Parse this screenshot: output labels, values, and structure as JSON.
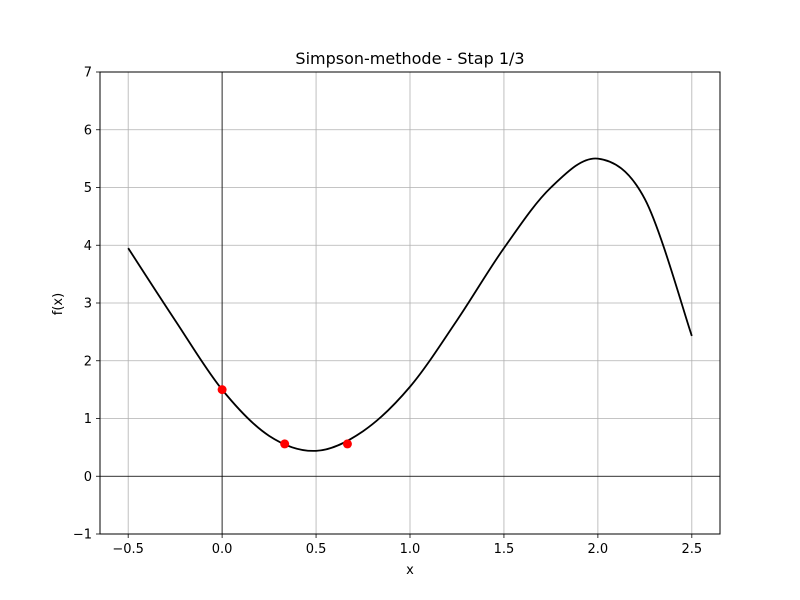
{
  "chart_data": {
    "type": "line",
    "title": "Simpson-methode - Stap 1/3",
    "xlabel": "x",
    "ylabel": "f(x)",
    "xlim": [
      -0.65,
      2.65
    ],
    "ylim": [
      -1,
      7
    ],
    "x_ticks": [
      -0.5,
      0.0,
      0.5,
      1.0,
      1.5,
      2.0,
      2.5
    ],
    "x_tick_labels": [
      "−0.5",
      "0.0",
      "0.5",
      "1.0",
      "1.5",
      "2.0",
      "2.5"
    ],
    "y_ticks": [
      -1,
      0,
      1,
      2,
      3,
      4,
      5,
      6,
      7
    ],
    "y_tick_labels": [
      "−1",
      "0",
      "1",
      "2",
      "3",
      "4",
      "5",
      "6",
      "7"
    ],
    "grid": true,
    "reference_lines": {
      "x": 0,
      "y": 0
    },
    "series": [
      {
        "kind": "curve",
        "color": "#000000",
        "x": [
          -0.5,
          -0.25,
          0.0,
          0.25,
          0.5,
          0.75,
          1.0,
          1.25,
          1.5,
          1.75,
          2.0,
          2.25,
          2.5
        ],
        "y": [
          3.95,
          2.7,
          1.5,
          0.7,
          0.44,
          0.78,
          1.55,
          2.7,
          3.95,
          5.0,
          5.5,
          4.8,
          2.43
        ]
      },
      {
        "kind": "points",
        "color": "#ff0000",
        "x": [
          0.0,
          0.333,
          0.667
        ],
        "y": [
          1.5,
          0.56,
          0.56
        ]
      }
    ]
  }
}
